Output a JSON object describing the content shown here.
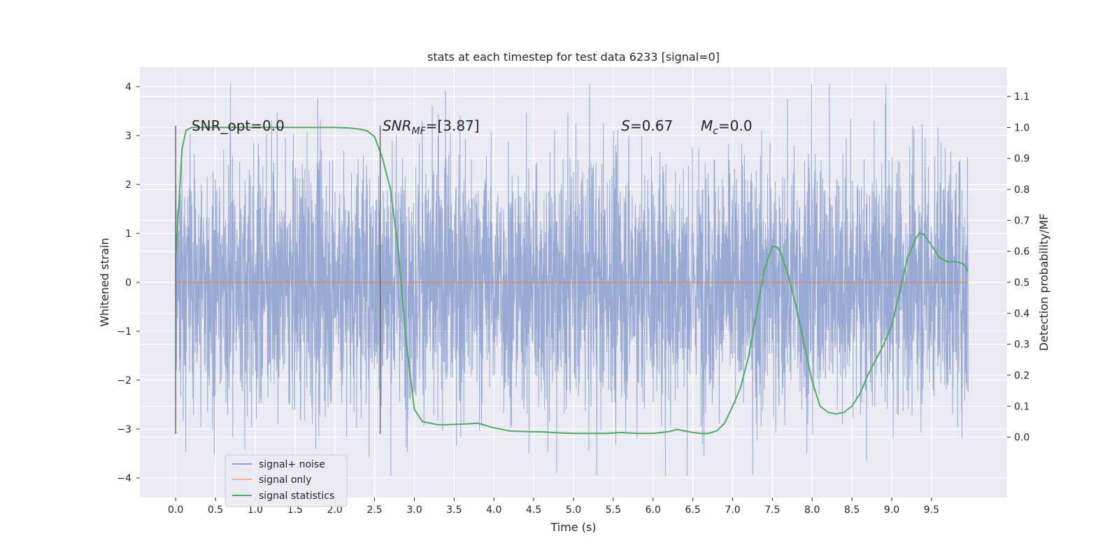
{
  "chart_data": {
    "type": "line",
    "title": "stats at each timestep for test data 6233 [signal=0]",
    "xlabel": "Time (s)",
    "ylabel_left": "Whitened strain",
    "ylabel_right": "Detection probability/MF",
    "xlim": [
      -0.45,
      10.45
    ],
    "ylim_left": [
      -4.4,
      4.4
    ],
    "ylim_right": [
      -0.195,
      1.195
    ],
    "grid": true,
    "legend_position": "lower-left",
    "x_ticks": [
      "0.0",
      "0.5",
      "1.0",
      "1.5",
      "2.0",
      "2.5",
      "3.0",
      "3.5",
      "4.0",
      "4.5",
      "5.0",
      "5.5",
      "6.0",
      "6.5",
      "7.0",
      "7.5",
      "8.0",
      "8.5",
      "9.0",
      "9.5"
    ],
    "y_ticks_left": [
      "−4",
      "−3",
      "−2",
      "−1",
      "0",
      "1",
      "2",
      "3",
      "4"
    ],
    "y_ticks_right": [
      "0.0",
      "0.1",
      "0.2",
      "0.3",
      "0.4",
      "0.5",
      "0.6",
      "0.7",
      "0.8",
      "0.9",
      "1.0",
      "1.1"
    ],
    "annotations": {
      "snr_opt": {
        "x": 0.2,
        "y": 3.1,
        "text": "SNR_opt=0.0"
      },
      "snr_mf_prefix": "SNR",
      "snr_mf_sub": "MF",
      "snr_mf_suffix": "=[3.87]",
      "snr_mf_x": 2.6,
      "s_prefix": "S",
      "s_value": "=0.67",
      "s_x": 5.6,
      "mc_prefix": "M",
      "mc_sub": "c",
      "mc_value": "=0.0",
      "mc_x": 6.6,
      "annot_y": 3.1
    },
    "vlines": [
      {
        "x": 0.0,
        "y_range": [
          -3.1,
          3.2
        ]
      },
      {
        "x": 2.57,
        "y_range": [
          -3.1,
          3.2
        ]
      }
    ],
    "series": [
      {
        "name": "signal+ noise",
        "color": "#8fa3cf",
        "t_range": [
          0.0,
          9.96
        ],
        "typical_amplitude": 1.3,
        "max_extent": [
          -3.95,
          4.05
        ]
      },
      {
        "name": "signal only",
        "color": "#dd8452",
        "x": [
          0.0,
          9.96
        ],
        "y": [
          0.0,
          0.0
        ]
      },
      {
        "name": "signal statistics",
        "color": "#55a868",
        "axis": "right",
        "x": [
          0.0,
          0.04,
          0.08,
          0.13,
          0.2,
          0.3,
          0.5,
          1.0,
          1.5,
          2.0,
          2.2,
          2.3,
          2.4,
          2.5,
          2.6,
          2.7,
          2.8,
          2.9,
          3.0,
          3.1,
          3.2,
          3.3,
          3.4,
          3.6,
          3.8,
          4.0,
          4.2,
          4.4,
          4.6,
          4.8,
          5.0,
          5.2,
          5.4,
          5.6,
          5.8,
          6.0,
          6.2,
          6.3,
          6.4,
          6.5,
          6.6,
          6.7,
          6.8,
          6.9,
          7.0,
          7.1,
          7.2,
          7.3,
          7.4,
          7.45,
          7.5,
          7.55,
          7.6,
          7.7,
          7.8,
          7.9,
          8.0,
          8.1,
          8.2,
          8.3,
          8.4,
          8.5,
          8.6,
          8.7,
          8.8,
          8.9,
          9.0,
          9.1,
          9.2,
          9.3,
          9.35,
          9.4,
          9.5,
          9.6,
          9.7,
          9.8,
          9.9,
          9.96
        ],
        "y": [
          0.58,
          0.75,
          0.93,
          0.99,
          1.0,
          1.0,
          1.0,
          1.0,
          1.0,
          1.0,
          0.998,
          0.995,
          0.99,
          0.97,
          0.9,
          0.8,
          0.6,
          0.3,
          0.09,
          0.05,
          0.045,
          0.04,
          0.04,
          0.042,
          0.045,
          0.03,
          0.02,
          0.018,
          0.017,
          0.014,
          0.012,
          0.012,
          0.012,
          0.015,
          0.012,
          0.012,
          0.018,
          0.025,
          0.02,
          0.015,
          0.012,
          0.012,
          0.02,
          0.045,
          0.1,
          0.16,
          0.26,
          0.4,
          0.54,
          0.58,
          0.615,
          0.615,
          0.6,
          0.52,
          0.42,
          0.3,
          0.18,
          0.1,
          0.08,
          0.075,
          0.08,
          0.1,
          0.14,
          0.2,
          0.25,
          0.3,
          0.36,
          0.47,
          0.58,
          0.64,
          0.66,
          0.655,
          0.62,
          0.58,
          0.566,
          0.567,
          0.56,
          0.535
        ]
      }
    ]
  }
}
